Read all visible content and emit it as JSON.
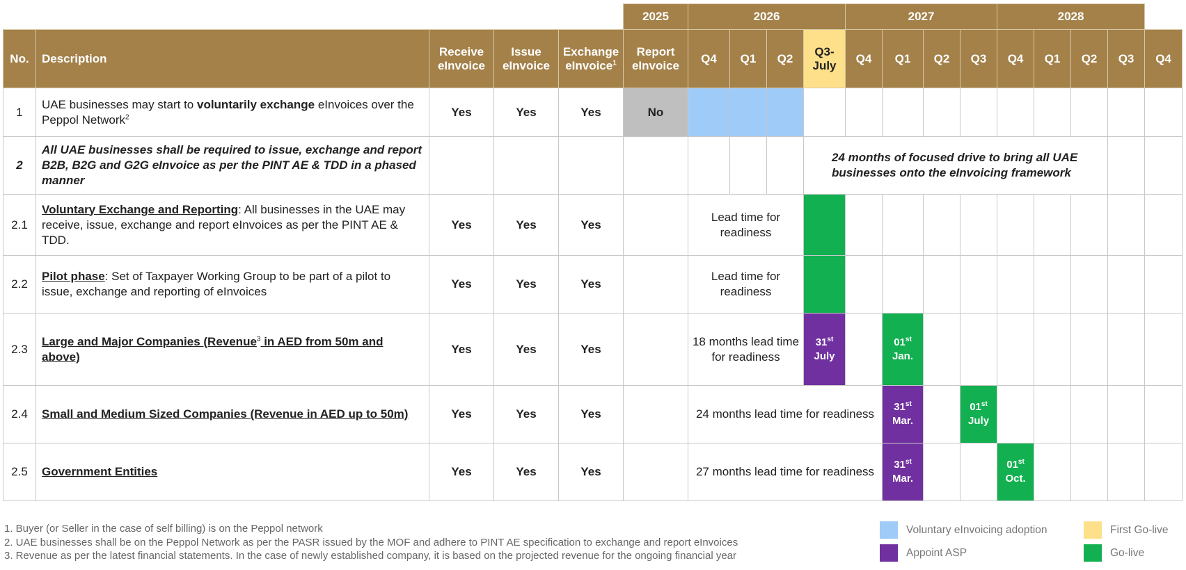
{
  "years": [
    "2025",
    "2026",
    "2027",
    "2028"
  ],
  "columns": {
    "no": "No.",
    "description": "Description",
    "flags": [
      {
        "label": "Receive eInvoice"
      },
      {
        "label": "Issue eInvoice"
      },
      {
        "label": "Exchange eInvoice",
        "note": "1"
      },
      {
        "label": "Report eInvoice"
      }
    ],
    "quarters": [
      "Q4",
      "Q1",
      "Q2",
      "Q3-July",
      "Q4",
      "Q1",
      "Q2",
      "Q3",
      "Q4",
      "Q1",
      "Q2",
      "Q3",
      "Q4"
    ],
    "highlight_color": "#ffe08a"
  },
  "rows": [
    {
      "no": "1",
      "description": [
        {
          "text": "UAE businesses may start to "
        },
        {
          "text": "voluntarily exchange",
          "style": "bold"
        },
        {
          "text": " eInvoices over the Peppol Network"
        },
        {
          "text": "2",
          "style": "sup"
        }
      ],
      "flags": [
        "Yes",
        "Yes",
        "Yes",
        "No"
      ],
      "flag_colors": [
        null,
        null,
        null,
        "#bfbfbf"
      ],
      "timeline": [
        {
          "span": 1,
          "color": "#9ecbf8"
        },
        {
          "span": 1,
          "color": "#9ecbf8"
        },
        {
          "span": 1,
          "color": "#9ecbf8"
        },
        null,
        null,
        null,
        null,
        null,
        null,
        null,
        null,
        null,
        null
      ]
    },
    {
      "no": "2",
      "no_style": "bold-italic",
      "description": [
        {
          "text": "All UAE businesses shall be required to issue, exchange and report B2B, B2G and G2G eInvoice as per the PINT AE & TDD in a phased manner",
          "style": "bold-italic"
        }
      ],
      "flags": [
        null,
        null,
        null,
        null
      ],
      "timeline": [
        null,
        null,
        null,
        {
          "span": 8,
          "text": "24 months of focused drive to bring all UAE businesses onto the eInvoicing framework",
          "style": "bold-italic"
        },
        null,
        null
      ]
    },
    {
      "no": "2.1",
      "description": [
        {
          "text": "Voluntary Exchange and Reporting",
          "style": "underline"
        },
        {
          "text": ": All businesses in the UAE may receive, issue, exchange and report eInvoices as per the PINT AE & TDD."
        }
      ],
      "flags": [
        "Yes",
        "Yes",
        "Yes",
        null
      ],
      "timeline": [
        {
          "span": 3,
          "text": "Lead time for readiness"
        },
        {
          "span": 1,
          "color": "#12b050"
        },
        null,
        null,
        null,
        null,
        null,
        null,
        null,
        null,
        null
      ]
    },
    {
      "no": "2.2",
      "description": [
        {
          "text": "Pilot phase",
          "style": "underline"
        },
        {
          "text": ": Set of Taxpayer Working Group to be part of a pilot to issue, exchange and reporting of eInvoices"
        }
      ],
      "flags": [
        "Yes",
        "Yes",
        "Yes",
        null
      ],
      "timeline": [
        {
          "span": 3,
          "text": "Lead time for readiness"
        },
        {
          "span": 1,
          "color": "#12b050"
        },
        null,
        null,
        null,
        null,
        null,
        null,
        null,
        null,
        null
      ]
    },
    {
      "no": "2.3",
      "description": [
        {
          "text": "Large and Major Companies (Revenue",
          "style": "underline"
        },
        {
          "text": "3",
          "style": "sup"
        },
        {
          "text": " in AED from 50m and above)",
          "style": "underline"
        }
      ],
      "flags": [
        "Yes",
        "Yes",
        "Yes",
        null
      ],
      "timeline": [
        {
          "span": 3,
          "text": "18 months lead time for readiness"
        },
        {
          "span": 1,
          "color": "#7030a0",
          "day": "31",
          "suffix": "st",
          "month": "July"
        },
        null,
        {
          "span": 1,
          "color": "#12b050",
          "day": "01",
          "suffix": "st",
          "month": "Jan."
        },
        null,
        null,
        null,
        null,
        null,
        null,
        null
      ]
    },
    {
      "no": "2.4",
      "description": [
        {
          "text": "Small and Medium Sized Companies (Revenue in AED up to 50m)",
          "style": "underline"
        }
      ],
      "flags": [
        "Yes",
        "Yes",
        "Yes",
        null
      ],
      "timeline": [
        {
          "span": 5,
          "text": "24 months lead time for readiness"
        },
        {
          "span": 1,
          "color": "#7030a0",
          "day": "31",
          "suffix": "st",
          "month": "Mar."
        },
        null,
        {
          "span": 1,
          "color": "#12b050",
          "day": "01",
          "suffix": "st",
          "month": "July"
        },
        null,
        null,
        null,
        null,
        null
      ]
    },
    {
      "no": "2.5",
      "description": [
        {
          "text": "Government Entities",
          "style": "underline"
        }
      ],
      "flags": [
        "Yes",
        "Yes",
        "Yes",
        null
      ],
      "timeline": [
        {
          "span": 5,
          "text": "27 months lead time for readiness"
        },
        {
          "span": 1,
          "color": "#7030a0",
          "day": "31",
          "suffix": "st",
          "month": "Mar."
        },
        null,
        null,
        {
          "span": 1,
          "color": "#12b050",
          "day": "01",
          "suffix": "st",
          "month": "Oct."
        },
        null,
        null,
        null,
        null
      ]
    }
  ],
  "footnotes": [
    "1. Buyer (or Seller in the case of self billing) is on the Peppol network",
    "2. UAE businesses shall be on the Peppol Network as per the PASR issued by the MOF and adhere to PINT AE specification to exchange and report eInvoices",
    "3. Revenue as per the latest financial statements. In the case of newly established company, it is based on the projected revenue for the ongoing financial year"
  ],
  "legend": [
    {
      "label": "Voluntary  eInvoicing adoption",
      "color": "#9ecbf8"
    },
    {
      "label": "First Go-live",
      "color": "#ffe08a"
    },
    {
      "label": "Appoint ASP",
      "color": "#7030a0"
    },
    {
      "label": "Go-live",
      "color": "#12b050"
    }
  ]
}
